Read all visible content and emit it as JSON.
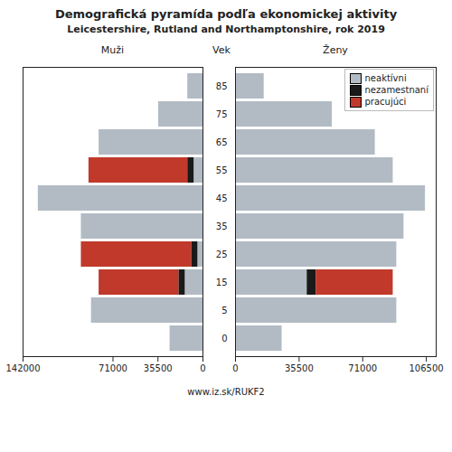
{
  "title": "Demografická pyramída podľa ekonomickej aktivity",
  "subtitle": "Leicestershire, Rutland and Northamptonshire, rok 2019",
  "caption": "www.iz.sk/RUKF2",
  "chart_data": [
    {
      "type": "bar",
      "title": "Muži",
      "orientation": "horizontal",
      "stacked": true,
      "categories": [
        "0",
        "5",
        "15",
        "25",
        "35",
        "45",
        "55",
        "65",
        "75",
        "85"
      ],
      "series": [
        {
          "name": "neaktívni",
          "color": "#b2bbc4",
          "values": [
            26000,
            88000,
            14000,
            4000,
            96000,
            130000,
            7000,
            82000,
            35000,
            12000
          ]
        },
        {
          "name": "nezamestnaní",
          "color": "#1a1a1a",
          "values": [
            0,
            0,
            5000,
            5000,
            0,
            0,
            5000,
            0,
            0,
            0
          ]
        },
        {
          "name": "pracujúci",
          "color": "#c0392b",
          "values": [
            0,
            0,
            63000,
            87000,
            0,
            0,
            78000,
            0,
            0,
            0
          ]
        }
      ],
      "xlim": [
        0,
        142000
      ],
      "xticks": [
        0,
        35500,
        71000,
        142000
      ],
      "grid": false,
      "tick_labels": "x"
    },
    {
      "type": "bar",
      "title": "Ženy",
      "ylabel": "Vek",
      "orientation": "horizontal",
      "stacked": true,
      "categories": [
        "0",
        "5",
        "15",
        "25",
        "35",
        "45",
        "55",
        "65",
        "75",
        "85"
      ],
      "series": [
        {
          "name": "neaktívni",
          "color": "#b2bbc4",
          "values": [
            26000,
            90000,
            40000,
            90000,
            94000,
            106000,
            88000,
            78000,
            54000,
            16000
          ]
        },
        {
          "name": "nezamestnaní",
          "color": "#1a1a1a",
          "values": [
            0,
            0,
            5000,
            0,
            0,
            0,
            0,
            0,
            0,
            0
          ]
        },
        {
          "name": "pracujúci",
          "color": "#c0392b",
          "values": [
            0,
            0,
            43000,
            0,
            0,
            0,
            0,
            0,
            0,
            0
          ]
        }
      ],
      "xlim": [
        0,
        112000
      ],
      "xticks": [
        0,
        35500,
        71000,
        106500
      ],
      "grid": false,
      "legend": "upper right"
    }
  ]
}
